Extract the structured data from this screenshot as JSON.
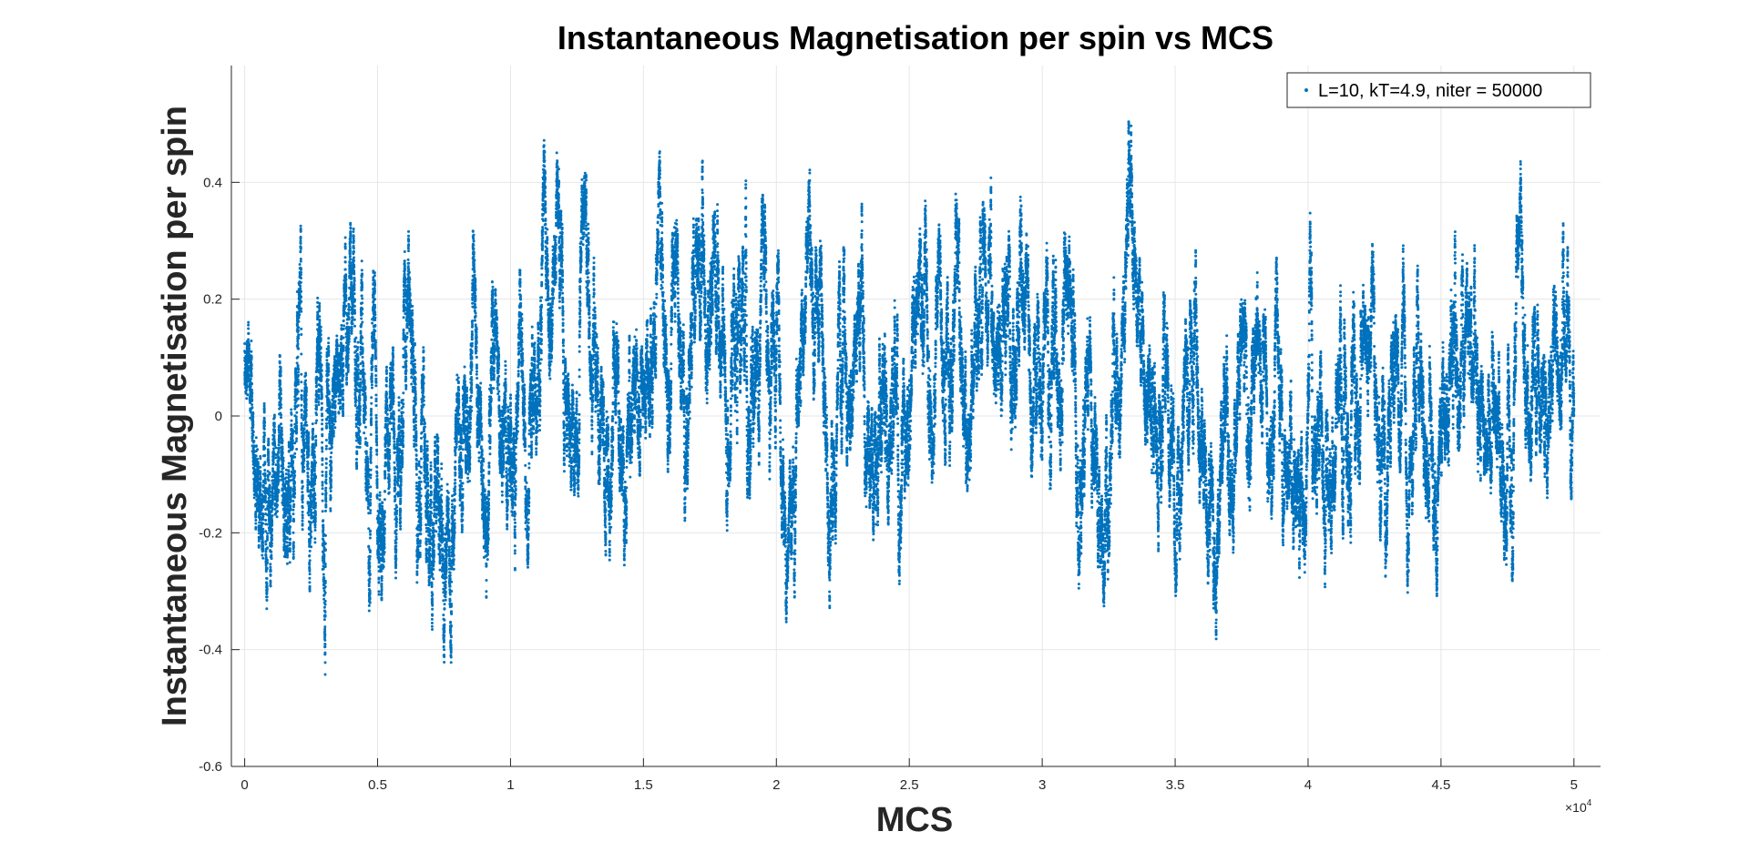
{
  "chart_data": {
    "type": "scatter",
    "title": "Instantaneous Magnetisation per spin vs MCS",
    "xlabel": "MCS",
    "ylabel": "Instantaneous Magnetisation per spin",
    "x_exponent_base": "×10",
    "x_exponent_power": "4",
    "x_scale_factor": 10000,
    "xlim": [
      -0.05,
      5.1
    ],
    "ylim": [
      -0.6,
      0.6
    ],
    "x_ticks": [
      "0",
      "0.5",
      "1",
      "1.5",
      "2",
      "2.5",
      "3",
      "3.5",
      "4",
      "4.5",
      "5"
    ],
    "y_ticks": [
      "-0.6",
      "-0.4",
      "-0.2",
      "0",
      "0.2",
      "0.4"
    ],
    "grid": true,
    "legend_location": "top-right",
    "series": [
      {
        "name": "L=10, kT=4.9, niter = 50000",
        "marker": "point",
        "color": "#0072bd",
        "x_range": [
          0,
          50000
        ],
        "n_points": 50000,
        "y_mean": 0.0,
        "y_std": 0.15,
        "y_min": -0.55,
        "y_max": 0.52
      }
    ]
  },
  "colors": {
    "axis": "#262626",
    "grid": "#e6e6e6",
    "marker": "#0072bd",
    "background": "#ffffff"
  }
}
